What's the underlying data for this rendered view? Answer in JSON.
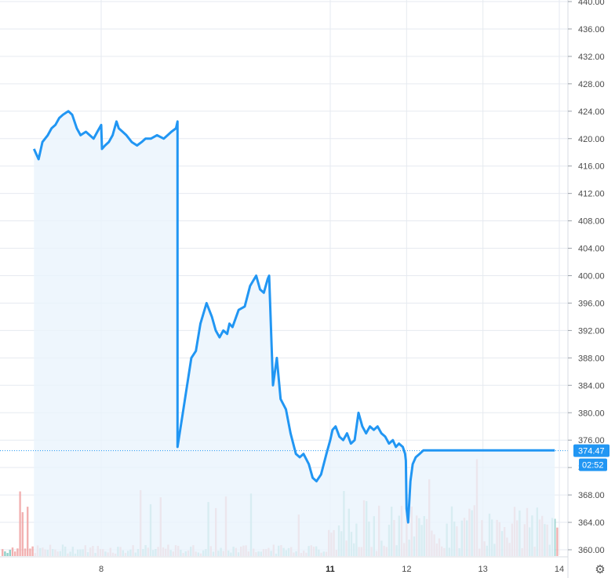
{
  "chart_data": {
    "type": "line",
    "title": "",
    "xlabel": "",
    "ylabel": "",
    "ylim": [
      359.0,
      440.5
    ],
    "y_ticks": [
      360,
      364,
      368,
      372,
      376,
      380,
      384,
      388,
      392,
      396,
      400,
      404,
      408,
      412,
      416,
      420,
      424,
      428,
      432,
      436,
      440
    ],
    "x_tick_labels": [
      {
        "label": "8",
        "x": 8,
        "bold": false
      },
      {
        "label": "11",
        "x": 11,
        "bold": true
      },
      {
        "label": "12",
        "x": 12,
        "bold": false
      },
      {
        "label": "13",
        "x": 13,
        "bold": false
      },
      {
        "label": "14",
        "x": 14,
        "bold": false
      }
    ],
    "xlim": [
      7.12,
      14.0
    ],
    "grid": true,
    "series": [
      {
        "values_x": [
          7.12,
          7.18,
          7.23,
          7.3,
          7.35,
          7.4,
          7.45,
          7.5,
          7.57,
          7.62,
          7.68,
          7.73,
          7.8,
          7.85,
          7.9,
          7.95,
          8.0,
          8.01,
          8.05,
          8.1,
          8.15,
          8.2,
          8.23,
          8.28,
          8.33,
          8.4,
          8.47,
          8.53,
          8.58,
          8.65,
          8.73,
          8.82,
          8.87,
          8.92,
          8.98,
          9.0,
          9.0,
          9.07,
          9.18,
          9.24,
          9.3,
          9.38,
          9.45,
          9.5,
          9.55,
          9.6,
          9.65,
          9.68,
          9.72,
          9.8,
          9.88,
          9.95,
          10.03,
          10.08,
          10.13,
          10.18,
          10.2,
          10.25,
          10.3,
          10.35,
          10.42,
          10.48,
          10.55,
          10.6,
          10.65,
          10.72,
          10.77,
          10.82,
          10.88,
          10.95,
          11.0,
          11.03,
          11.07,
          11.12,
          11.17,
          11.22,
          11.27,
          11.32,
          11.37,
          11.42,
          11.47,
          11.52,
          11.57,
          11.62,
          11.67,
          11.72,
          11.77,
          11.82,
          11.86,
          11.9,
          11.95,
          11.98,
          11.99,
          12.0,
          12.02,
          12.05,
          12.08,
          12.12,
          12.17,
          12.22,
          12.27,
          12.32,
          12.37,
          12.42,
          12.47,
          12.52,
          12.57,
          12.62,
          12.67,
          12.72,
          12.77,
          12.82,
          12.87,
          12.92,
          12.97,
          13.02,
          13.07,
          13.12,
          13.17,
          13.22,
          13.27,
          13.32,
          13.37,
          13.42,
          13.47,
          13.52,
          13.57,
          13.62,
          13.67,
          13.72,
          13.75,
          13.78,
          13.81,
          13.85,
          13.9,
          13.94
        ],
        "values_y": [
          418.5,
          417.0,
          419.5,
          420.5,
          421.5,
          422.0,
          423.0,
          423.5,
          424.0,
          423.5,
          421.5,
          420.5,
          421.0,
          420.5,
          420.0,
          421.0,
          422.0,
          418.5,
          419.0,
          419.5,
          420.5,
          422.5,
          421.5,
          421.0,
          420.5,
          419.5,
          419.0,
          419.5,
          420.0,
          420.0,
          420.5,
          420.0,
          420.5,
          421.0,
          421.5,
          422.5,
          375.0,
          380.0,
          388.0,
          389.0,
          393.0,
          396.0,
          394.0,
          392.0,
          391.0,
          392.0,
          391.5,
          393.0,
          392.5,
          395.0,
          395.5,
          398.5,
          400.0,
          398.0,
          397.5,
          399.5,
          400.0,
          384.0,
          388.0,
          382.0,
          380.5,
          377.0,
          374.0,
          373.5,
          374.0,
          372.5,
          370.5,
          370.0,
          371.0,
          374.0,
          376.0,
          377.5,
          378.0,
          376.5,
          376.0,
          377.0,
          375.5,
          376.0,
          380.0,
          378.0,
          377.0,
          378.0,
          377.5,
          378.0,
          377.0,
          376.5,
          375.5,
          376.0,
          375.0,
          375.5,
          375.0,
          374.0,
          373.0,
          366.0,
          364.0,
          370.0,
          372.5,
          373.5,
          374.0,
          374.5,
          374.5,
          374.5,
          374.5,
          374.5,
          374.5,
          374.5,
          374.5,
          374.5,
          374.5,
          374.5,
          374.5,
          374.5,
          374.5,
          374.5,
          374.5,
          374.5,
          374.5,
          374.5,
          374.5,
          374.5,
          374.5,
          374.5,
          374.5,
          374.5,
          374.5,
          374.5,
          374.5,
          374.5,
          374.5,
          374.5,
          374.5,
          374.5,
          374.5,
          374.5,
          374.5,
          374.5
        ]
      }
    ],
    "last_price_label": "374.47",
    "countdown_label": "02:52",
    "colors": {
      "line": "#2196f3",
      "fill": "#eaf4fd",
      "grid": "#e6eaf0",
      "badge": "#2196f3",
      "volume_up": "#7ec8c0",
      "volume_down": "#f0a3a3"
    }
  },
  "toolbar": {
    "settings_icon": "gear-icon"
  }
}
